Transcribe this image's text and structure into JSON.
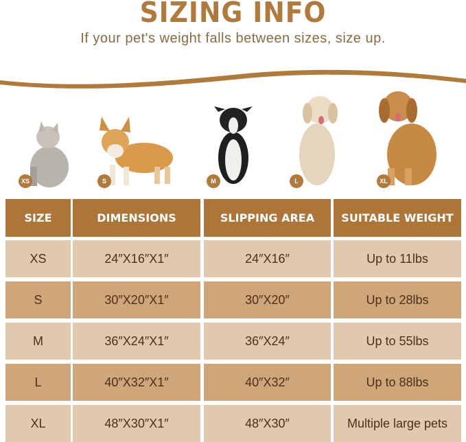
{
  "header": {
    "title": "SIZING INFO",
    "subtitle": "If your pet's weight falls between sizes, size up."
  },
  "animals": [
    {
      "label": "XS",
      "pet": "cat"
    },
    {
      "label": "S",
      "pet": "corgi"
    },
    {
      "label": "M",
      "pet": "border-collie"
    },
    {
      "label": "L",
      "pet": "labrador"
    },
    {
      "label": "XL",
      "pet": "golden-retriever"
    }
  ],
  "table": {
    "headers": [
      "SIZE",
      "DIMENSIONS",
      "SLIPPING AREA",
      "SUITABLE WEIGHT"
    ],
    "rows": [
      [
        "XS",
        "24″X16″X1″",
        "24″X16″",
        "Up to 11lbs"
      ],
      [
        "S",
        "30″X20″X1″",
        "30″X20″",
        "Up to 28lbs"
      ],
      [
        "M",
        "36″X24″X1″",
        "36″X24″",
        "Up to 55lbs"
      ],
      [
        "L",
        "40″X32″X1″",
        "40″X32″",
        "Up to 88lbs"
      ],
      [
        "XL",
        "48″X30″X1″",
        "48″X30″",
        "Multiple large pets"
      ]
    ]
  },
  "colors": {
    "accent": "#ad7636",
    "row_light": "#e0c9ad",
    "row_dark": "#cfa57a",
    "text": "#4b3119"
  }
}
